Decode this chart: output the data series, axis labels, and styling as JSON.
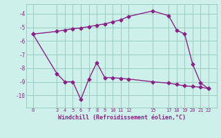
{
  "upper_x": [
    0,
    3,
    4,
    5,
    6,
    7,
    8,
    9,
    10,
    11,
    12,
    15,
    17,
    18,
    19,
    20,
    21,
    22
  ],
  "upper_y": [
    -5.5,
    -5.3,
    -5.2,
    -5.1,
    -5.05,
    -4.95,
    -4.85,
    -4.75,
    -4.6,
    -4.45,
    -4.2,
    -3.8,
    -4.15,
    -5.2,
    -5.5,
    -7.7,
    -9.1,
    -9.5
  ],
  "lower_x": [
    0,
    3,
    4,
    5,
    6,
    7,
    8,
    9,
    10,
    11,
    12,
    15,
    17,
    18,
    19,
    20,
    21,
    22
  ],
  "lower_y": [
    -5.5,
    -8.4,
    -9.0,
    -9.0,
    -10.3,
    -8.8,
    -7.6,
    -8.7,
    -8.7,
    -8.75,
    -8.8,
    -9.0,
    -9.1,
    -9.2,
    -9.3,
    -9.35,
    -9.4,
    -9.5
  ],
  "line_color": "#882288",
  "bg_color": "#cef0ea",
  "grid_color": "#99ccbb",
  "xlabel": "Windchill (Refroidissement éolien,°C)",
  "xticks": [
    0,
    3,
    4,
    5,
    6,
    7,
    8,
    9,
    10,
    11,
    12,
    15,
    17,
    18,
    19,
    20,
    21,
    22
  ],
  "yticks": [
    -10,
    -9,
    -8,
    -7,
    -6,
    -5,
    -4
  ],
  "xlim": [
    -0.8,
    23.0
  ],
  "ylim": [
    -10.9,
    -3.3
  ],
  "markersize": 2.5
}
